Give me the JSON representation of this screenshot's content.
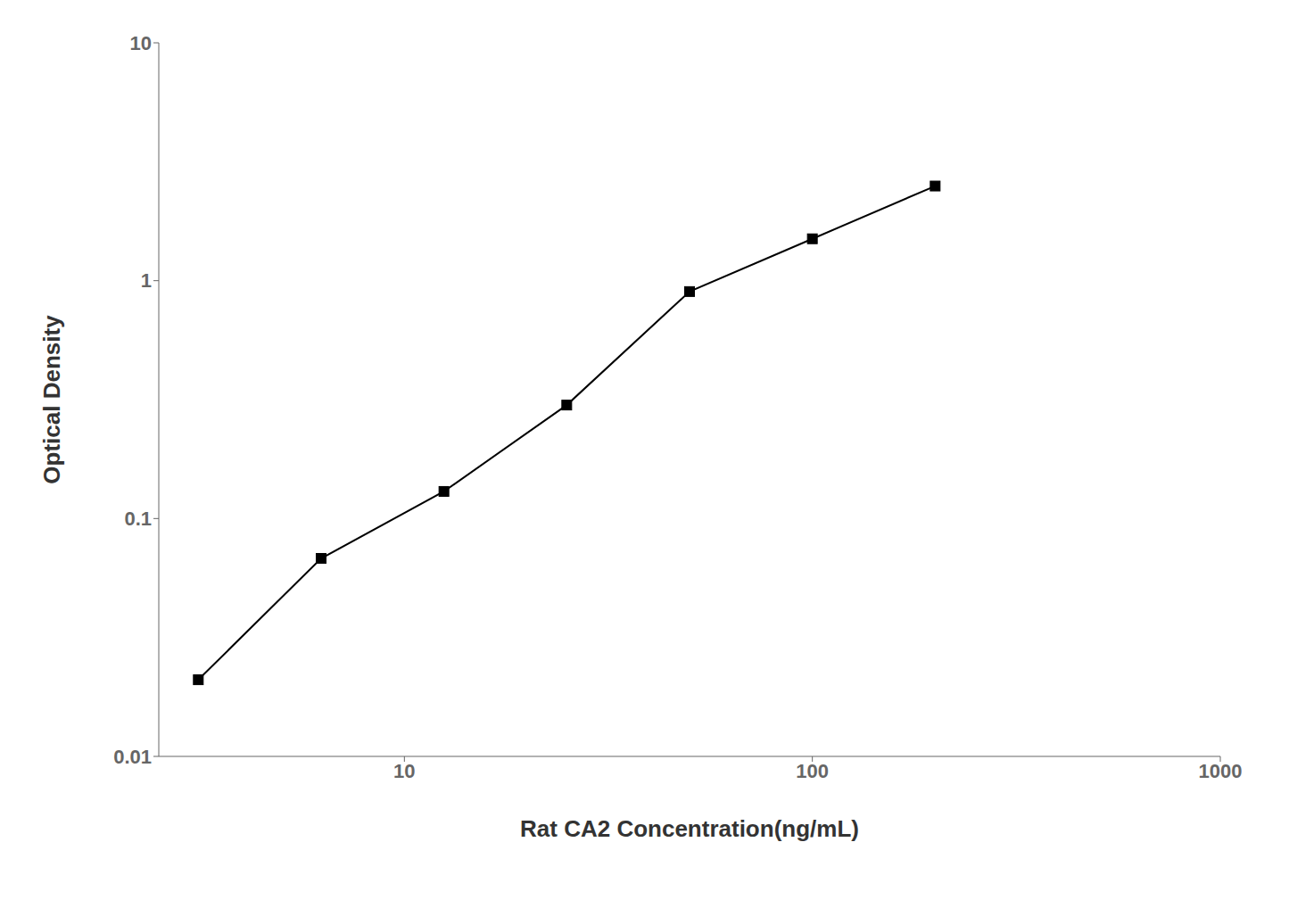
{
  "chart_data": {
    "type": "line",
    "x": [
      3.125,
      6.25,
      12.5,
      25,
      50,
      100,
      200
    ],
    "values": [
      0.021,
      0.068,
      0.13,
      0.3,
      0.9,
      1.5,
      2.5
    ],
    "xlabel": "Rat CA2 Concentration(ng/mL)",
    "ylabel": "Optical Density",
    "xlim": [
      2.5,
      1000
    ],
    "ylim": [
      0.01,
      10
    ],
    "xticks": [
      10,
      100,
      1000
    ],
    "yticks": [
      0.01,
      0.1,
      1,
      10
    ],
    "log": true,
    "grid": false,
    "color": "#000000",
    "marker": "square"
  }
}
